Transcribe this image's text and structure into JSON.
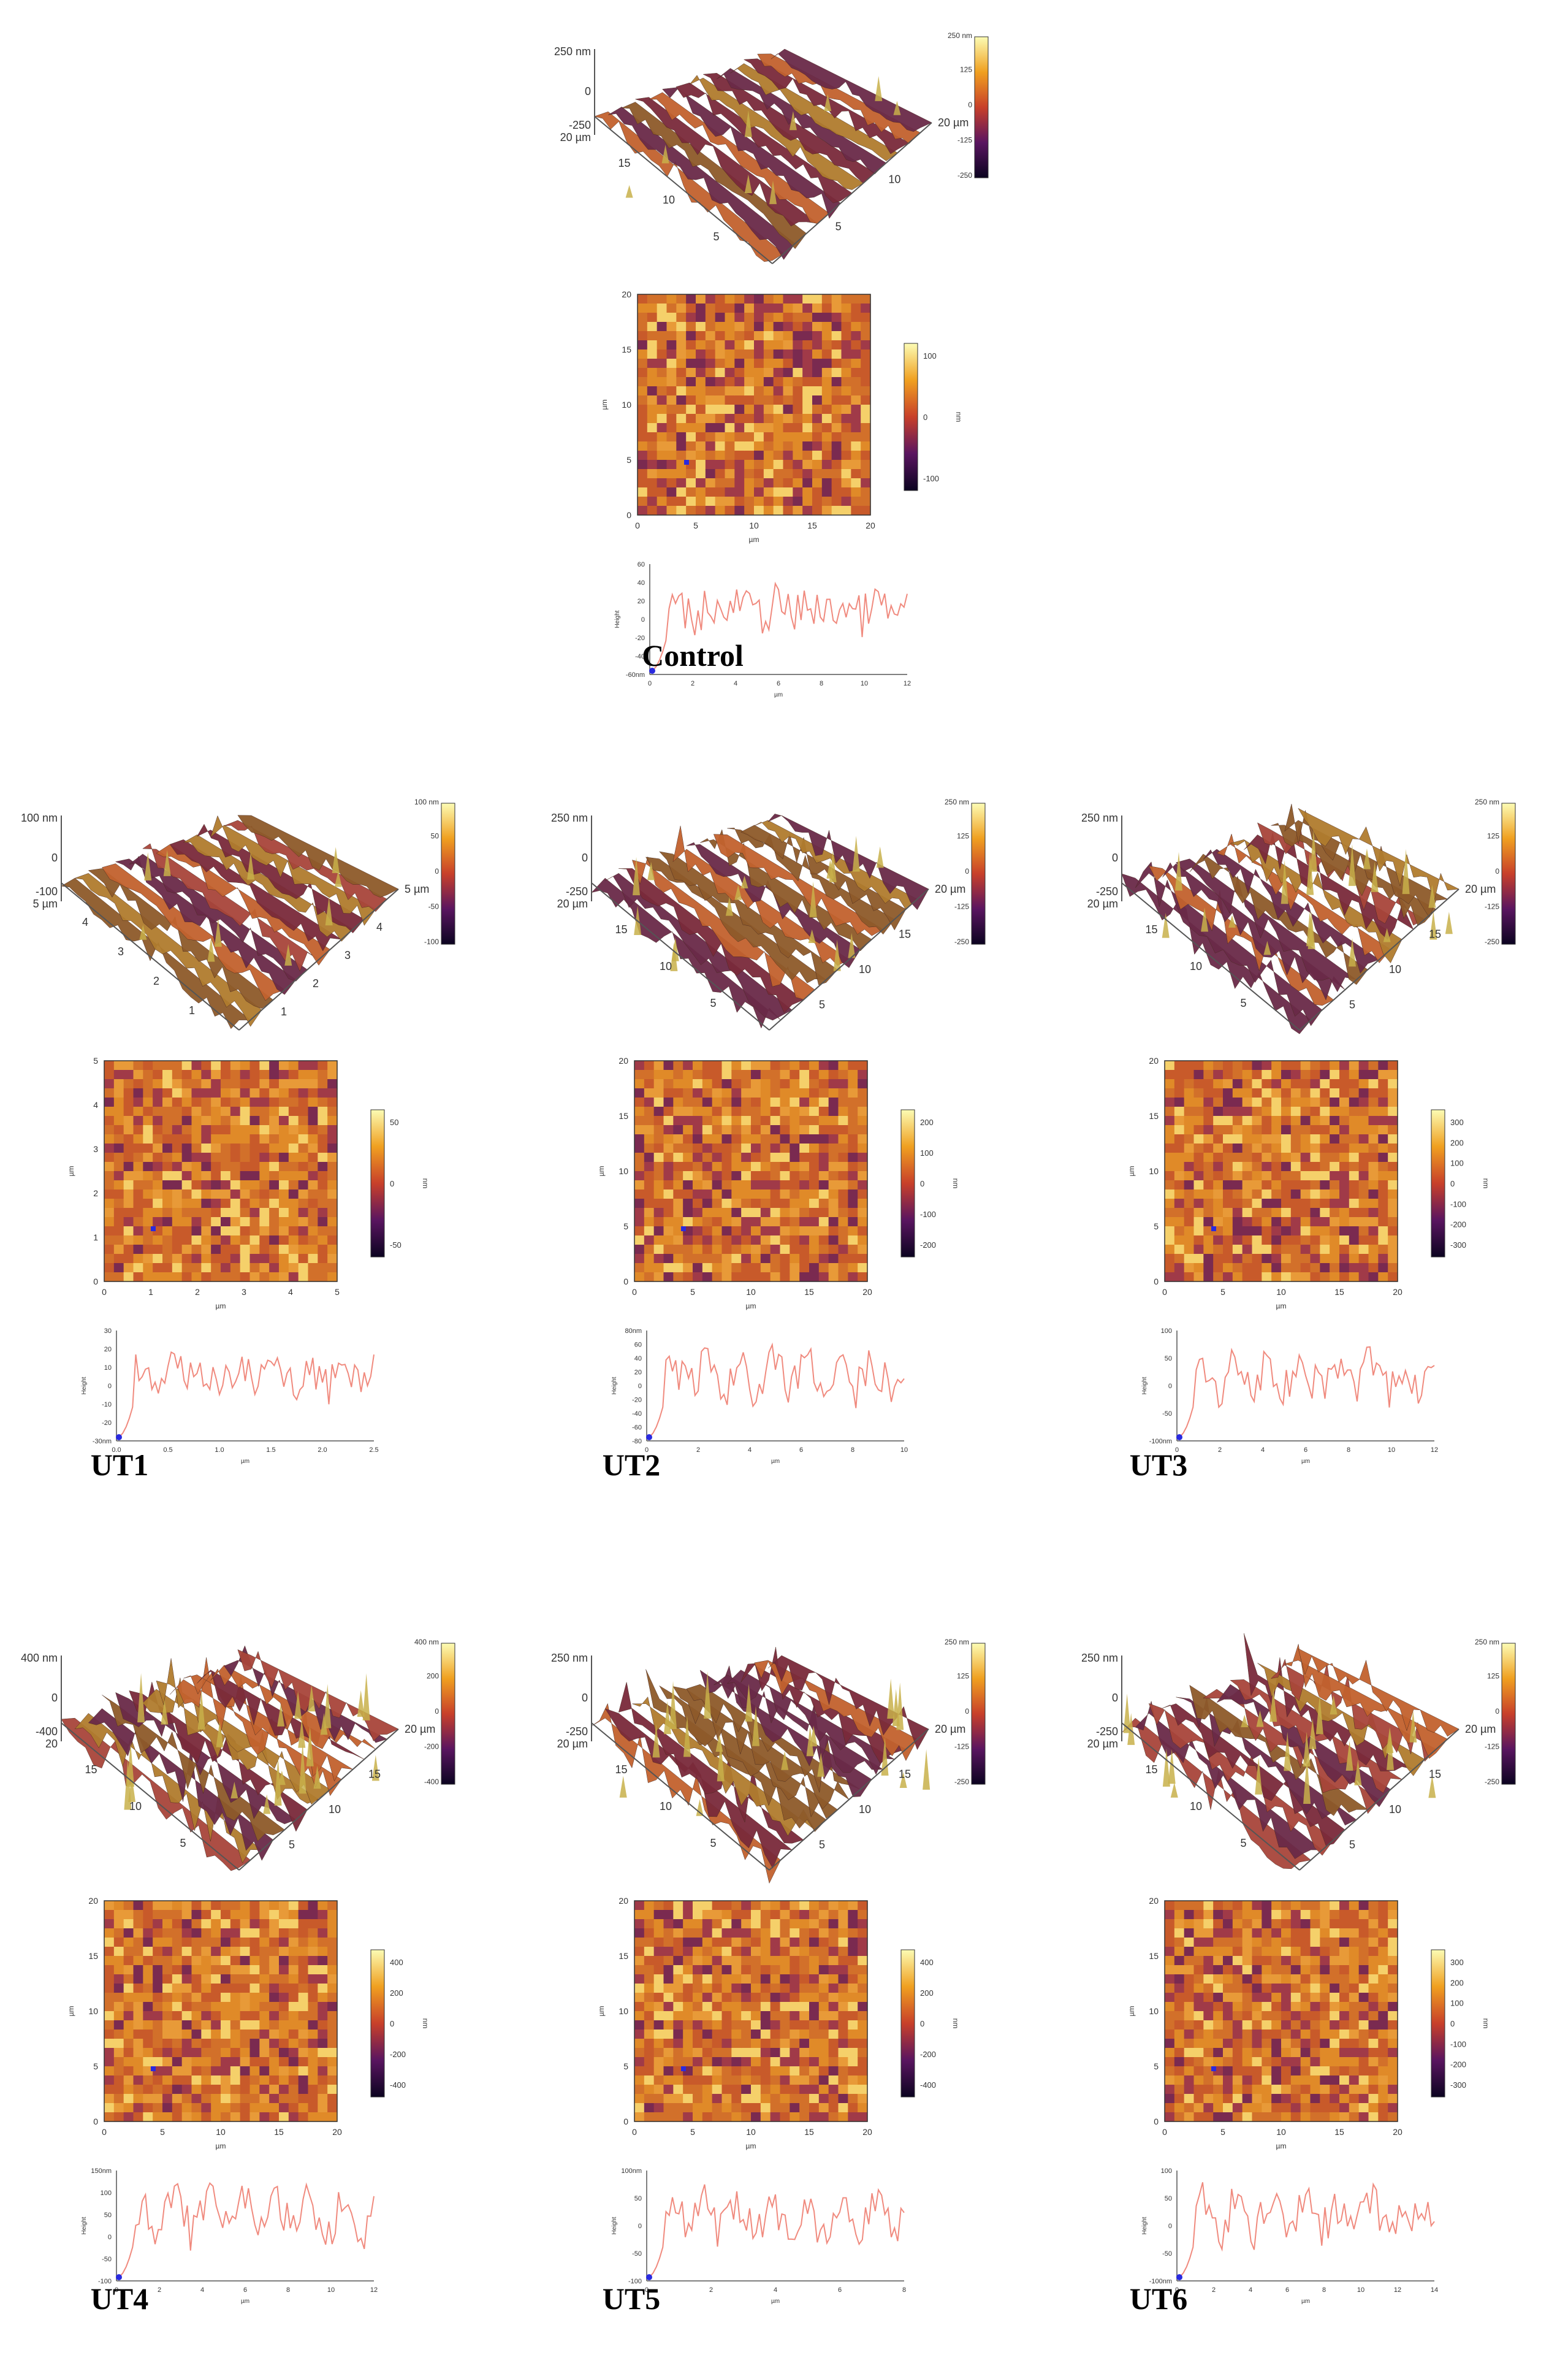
{
  "figure": {
    "panels": [
      {
        "id": "control",
        "caption": "Control",
        "surface": {
          "z_top": "250 nm",
          "z_zero": "0",
          "z_bottom": "-250",
          "corner_left": "20 µm",
          "corner_right": "20 µm",
          "left_ticks": [
            "15",
            "10",
            "5"
          ],
          "right_ticks": [
            "10",
            "5"
          ]
        },
        "scale3d": {
          "top": "250 nm",
          "ticks": [
            "125",
            "0",
            "-125",
            "-250"
          ]
        },
        "map": {
          "y_ticks": [
            "20",
            "15",
            "10",
            "5",
            "0"
          ],
          "x_ticks": [
            "0",
            "5",
            "10",
            "15",
            "20"
          ],
          "ylabel": "µm",
          "xlabel": "µm",
          "bar_ticks": [
            "100",
            "0",
            "-100"
          ],
          "bar_unit": "nm"
        },
        "profile": {
          "y_ticks": [
            "60",
            "40",
            "20",
            "0",
            "-20",
            "-40",
            "-60nm"
          ],
          "x_ticks": [
            "0",
            "2",
            "4",
            "6",
            "8",
            "10",
            "12"
          ],
          "ylabel": "Height",
          "xlabel": "µm"
        }
      },
      {
        "id": "ut1",
        "caption": "UT1",
        "surface": {
          "z_top": "100 nm",
          "z_zero": "0",
          "z_bottom": "-100",
          "corner_left": "5 µm",
          "corner_right": "5 µm",
          "left_ticks": [
            "4",
            "3",
            "2",
            "1"
          ],
          "right_ticks": [
            "4",
            "3",
            "2",
            "1"
          ]
        },
        "scale3d": {
          "top": "100 nm",
          "ticks": [
            "50",
            "0",
            "-50",
            "-100"
          ]
        },
        "map": {
          "y_ticks": [
            "5",
            "4",
            "3",
            "2",
            "1",
            "0"
          ],
          "x_ticks": [
            "0",
            "1",
            "2",
            "3",
            "4",
            "5"
          ],
          "ylabel": "µm",
          "xlabel": "µm",
          "bar_ticks": [
            "50",
            "0",
            "-50"
          ],
          "bar_unit": "nm"
        },
        "profile": {
          "y_ticks": [
            "30",
            "20",
            "10",
            "0",
            "-10",
            "-20",
            "-30nm"
          ],
          "x_ticks": [
            "0.0",
            "0.5",
            "1.0",
            "1.5",
            "2.0",
            "2.5"
          ],
          "ylabel": "Height",
          "xlabel": "µm"
        }
      },
      {
        "id": "ut2",
        "caption": "UT2",
        "surface": {
          "z_top": "250 nm",
          "z_zero": "0",
          "z_bottom": "-250",
          "corner_left": "20 µm",
          "corner_right": "20 µm",
          "left_ticks": [
            "15",
            "10",
            "5"
          ],
          "right_ticks": [
            "15",
            "10",
            "5"
          ]
        },
        "scale3d": {
          "top": "250 nm",
          "ticks": [
            "125",
            "0",
            "-125",
            "-250"
          ]
        },
        "map": {
          "y_ticks": [
            "20",
            "15",
            "10",
            "5",
            "0"
          ],
          "x_ticks": [
            "0",
            "5",
            "10",
            "15",
            "20"
          ],
          "ylabel": "µm",
          "xlabel": "µm",
          "bar_ticks": [
            "200",
            "100",
            "0",
            "-100",
            "-200"
          ],
          "bar_unit": "nm"
        },
        "profile": {
          "y_ticks": [
            "80nm",
            "60",
            "40",
            "20",
            "0",
            "-20",
            "-40",
            "-60",
            "-80"
          ],
          "x_ticks": [
            "0",
            "2",
            "4",
            "6",
            "8",
            "10"
          ],
          "ylabel": "Height",
          "xlabel": "µm"
        }
      },
      {
        "id": "ut3",
        "caption": "UT3",
        "surface": {
          "z_top": "250 nm",
          "z_zero": "0",
          "z_bottom": "-250",
          "corner_left": "20 µm",
          "corner_right": "20 µm",
          "left_ticks": [
            "15",
            "10",
            "5"
          ],
          "right_ticks": [
            "15",
            "10",
            "5"
          ]
        },
        "scale3d": {
          "top": "250 nm",
          "ticks": [
            "125",
            "0",
            "-125",
            "-250"
          ]
        },
        "map": {
          "y_ticks": [
            "20",
            "15",
            "10",
            "5",
            "0"
          ],
          "x_ticks": [
            "0",
            "5",
            "10",
            "15",
            "20"
          ],
          "ylabel": "µm",
          "xlabel": "µm",
          "bar_ticks": [
            "300",
            "200",
            "100",
            "0",
            "-100",
            "-200",
            "-300"
          ],
          "bar_unit": "nm"
        },
        "profile": {
          "y_ticks": [
            "100",
            "50",
            "0",
            "-50",
            "-100nm"
          ],
          "x_ticks": [
            "0",
            "2",
            "4",
            "6",
            "8",
            "10",
            "12"
          ],
          "ylabel": "Height",
          "xlabel": "µm"
        }
      },
      {
        "id": "ut4",
        "caption": "UT4",
        "surface": {
          "z_top": "400 nm",
          "z_zero": "0",
          "z_bottom": "-400",
          "corner_left": "20",
          "corner_right": "20 µm",
          "left_ticks": [
            "15",
            "10",
            "5"
          ],
          "right_ticks": [
            "15",
            "10",
            "5"
          ]
        },
        "scale3d": {
          "top": "400 nm",
          "ticks": [
            "200",
            "0",
            "-200",
            "-400"
          ]
        },
        "map": {
          "y_ticks": [
            "20",
            "15",
            "10",
            "5",
            "0"
          ],
          "x_ticks": [
            "0",
            "5",
            "10",
            "15",
            "20"
          ],
          "ylabel": "µm",
          "xlabel": "µm",
          "bar_ticks": [
            "400",
            "200",
            "0",
            "-200",
            "-400"
          ],
          "bar_unit": "nm"
        },
        "profile": {
          "y_ticks": [
            "150nm",
            "100",
            "50",
            "0",
            "-50",
            "-100"
          ],
          "x_ticks": [
            "0",
            "2",
            "4",
            "6",
            "8",
            "10",
            "12"
          ],
          "ylabel": "Height",
          "xlabel": "µm"
        }
      },
      {
        "id": "ut5",
        "caption": "UT5",
        "surface": {
          "z_top": "250 nm",
          "z_zero": "0",
          "z_bottom": "-250",
          "corner_left": "20 µm",
          "corner_right": "20 µm",
          "left_ticks": [
            "15",
            "10",
            "5"
          ],
          "right_ticks": [
            "15",
            "10",
            "5"
          ]
        },
        "scale3d": {
          "top": "250 nm",
          "ticks": [
            "125",
            "0",
            "-125",
            "-250"
          ]
        },
        "map": {
          "y_ticks": [
            "20",
            "15",
            "10",
            "5",
            "0"
          ],
          "x_ticks": [
            "0",
            "5",
            "10",
            "15",
            "20"
          ],
          "ylabel": "µm",
          "xlabel": "µm",
          "bar_ticks": [
            "400",
            "200",
            "0",
            "-200",
            "-400"
          ],
          "bar_unit": "nm"
        },
        "profile": {
          "y_ticks": [
            "100nm",
            "50",
            "0",
            "-50",
            "-100"
          ],
          "x_ticks": [
            "0",
            "2",
            "4",
            "6",
            "8"
          ],
          "ylabel": "Height",
          "xlabel": "µm"
        }
      },
      {
        "id": "ut6",
        "caption": "UT6",
        "surface": {
          "z_top": "250 nm",
          "z_zero": "0",
          "z_bottom": "-250",
          "corner_left": "20 µm",
          "corner_right": "20 µm",
          "left_ticks": [
            "15",
            "10",
            "5"
          ],
          "right_ticks": [
            "15",
            "10",
            "5"
          ]
        },
        "scale3d": {
          "top": "250 nm",
          "ticks": [
            "125",
            "0",
            "-125",
            "-250"
          ]
        },
        "map": {
          "y_ticks": [
            "20",
            "15",
            "10",
            "5",
            "0"
          ],
          "x_ticks": [
            "0",
            "5",
            "10",
            "15",
            "20"
          ],
          "ylabel": "µm",
          "xlabel": "µm",
          "bar_ticks": [
            "300",
            "200",
            "100",
            "0",
            "-100",
            "-200",
            "-300"
          ],
          "bar_unit": "nm"
        },
        "profile": {
          "y_ticks": [
            "100",
            "50",
            "0",
            "-50",
            "-100nm"
          ],
          "x_ticks": [
            "0",
            "2",
            "4",
            "6",
            "8",
            "10",
            "12",
            "14"
          ],
          "ylabel": "Height",
          "xlabel": "µm"
        }
      }
    ],
    "colors": {
      "profile_line": "#f08a7e",
      "marker": "#2a2adf",
      "cmap_low": "#0b0320",
      "cmap_mid": "#d8582a",
      "cmap_high": "#fcfcb4"
    }
  }
}
